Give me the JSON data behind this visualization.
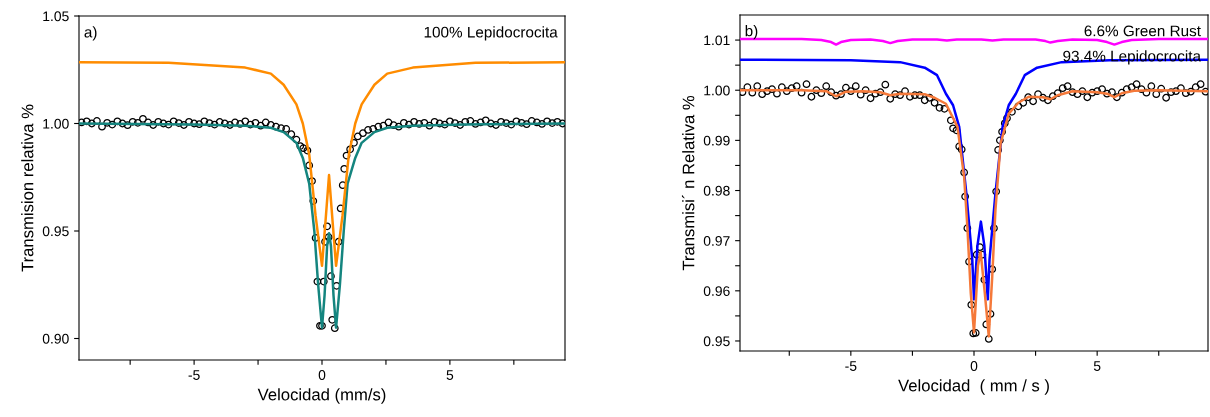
{
  "chart_data": [
    {
      "type": "line",
      "xlabel": "Velocidad (mm/s)",
      "ylabel": "Transmision relativa %",
      "xlim": [
        -9.5,
        9.5
      ],
      "ylim": [
        0.89,
        1.05
      ],
      "xticks": [
        {
          "value": -7.5,
          "label": null
        },
        -5,
        {
          "value": -2.5,
          "label": null
        },
        0,
        {
          "value": 2.5,
          "label": null
        },
        5,
        {
          "value": 7.5,
          "label": null
        }
      ],
      "yticks": [
        {
          "value": 0.9,
          "label": "0.90"
        },
        {
          "value": 0.95,
          "label": "0.95"
        },
        {
          "value": 1.0,
          "label": "1.00"
        },
        {
          "value": 1.05,
          "label": "1.05"
        }
      ],
      "annotations": [
        "a)",
        "100% Lepidocrocita"
      ],
      "series": [
        {
          "type": "scatter",
          "marker": "circle",
          "color": "#000000",
          "x": [
            -9.4,
            -9.2,
            -9.0,
            -8.8,
            -8.6,
            -8.4,
            -8.2,
            -8.0,
            -7.8,
            -7.6,
            -7.4,
            -7.2,
            -7.0,
            -6.8,
            -6.6,
            -6.4,
            -6.2,
            -6.0,
            -5.8,
            -5.6,
            -5.4,
            -5.2,
            -5.0,
            -4.8,
            -4.6,
            -4.4,
            -4.2,
            -4.0,
            -3.8,
            -3.6,
            -3.4,
            -3.2,
            -3.0,
            -2.8,
            -2.6,
            -2.4,
            -2.2,
            -2.0,
            -1.8,
            -1.6,
            -1.4,
            -1.2,
            -1.0,
            -0.85,
            -0.73,
            -0.57,
            -0.5,
            -0.39,
            -0.34,
            -0.25,
            -0.18,
            -0.08,
            0.0,
            0.07,
            0.12,
            0.2,
            0.26,
            0.35,
            0.4,
            0.5,
            0.57,
            0.65,
            0.73,
            0.81,
            0.87,
            0.96,
            1.1,
            1.25,
            1.4,
            1.6,
            1.8,
            2.0,
            2.2,
            2.4,
            2.6,
            2.8,
            3.0,
            3.2,
            3.4,
            3.6,
            3.8,
            4.0,
            4.2,
            4.4,
            4.6,
            4.8,
            5.0,
            5.2,
            5.4,
            5.6,
            5.8,
            6.0,
            6.2,
            6.4,
            6.6,
            6.8,
            7.0,
            7.2,
            7.4,
            7.6,
            7.8,
            8.0,
            8.2,
            8.4,
            8.6,
            8.8,
            9.0,
            9.2,
            9.4
          ],
          "values": [
            1.0005,
            1.001,
            1.0,
            1.0012,
            0.9985,
            1.0003,
            0.9995,
            1.001,
            1.0,
            0.9992,
            1.0008,
            1.0003,
            1.0022,
            1.0005,
            0.9993,
            1.0008,
            1.0,
            0.9995,
            1.001,
            1.0002,
            0.9993,
            1.0008,
            1.0,
            0.9997,
            1.001,
            1.0002,
            0.9995,
            1.0007,
            1.0,
            0.9993,
            1.0005,
            0.9998,
            1.001,
            0.9995,
            1.0003,
            0.999,
            1.0005,
            0.9993,
            0.9985,
            0.9978,
            0.9975,
            0.995,
            0.9925,
            0.9895,
            0.9885,
            0.9874,
            0.9805,
            0.9732,
            0.9639,
            0.9468,
            0.9265,
            0.9059,
            0.9059,
            0.9265,
            0.945,
            0.9522,
            0.9471,
            0.929,
            0.9087,
            0.9048,
            0.9245,
            0.945,
            0.9605,
            0.9713,
            0.9789,
            0.9851,
            0.988,
            0.991,
            0.994,
            0.9955,
            0.997,
            0.9975,
            0.9985,
            0.999,
            1.0005,
            0.9992,
            0.9985,
            1.0003,
            0.9995,
            1.0008,
            0.9998,
            1.0003,
            0.999,
            1.0008,
            1.0,
            0.9995,
            1.001,
            1.0002,
            0.9993,
            1.0008,
            1.0012,
            0.9998,
            1.0005,
            1.0015,
            1.0,
            0.9993,
            1.0008,
            1.0002,
            0.9995,
            1.001,
            1.0003,
            0.9997,
            1.0012,
            1.0005,
            0.9998,
            1.001,
            1.0002,
            1.0008,
            1.0
          ]
        },
        {
          "color": "#14857f",
          "x": [
            -9.5,
            -5,
            -3,
            -2,
            -1.5,
            -1,
            -0.75,
            -0.5,
            -0.3,
            -0.15,
            0.0,
            0.1,
            0.2,
            0.275,
            0.35,
            0.45,
            0.55,
            0.7,
            0.85,
            1.0,
            1.3,
            1.55,
            2.05,
            2.55,
            3.55,
            5.55,
            9.5
          ],
          "values": [
            1.0,
            0.9995,
            0.999,
            0.998,
            0.996,
            0.991,
            0.984,
            0.972,
            0.95,
            0.925,
            0.905,
            0.92,
            0.943,
            0.949,
            0.943,
            0.92,
            0.905,
            0.925,
            0.95,
            0.972,
            0.984,
            0.991,
            0.996,
            0.998,
            0.999,
            0.9995,
            1.0
          ]
        },
        {
          "color": "#ff8c00",
          "x": [
            -9.5,
            -6,
            -3,
            -2,
            -1.5,
            -1,
            -0.75,
            -0.5,
            -0.25,
            0.0,
            0.14,
            0.275,
            0.41,
            0.55,
            0.8,
            1.05,
            1.3,
            1.55,
            2.05,
            2.55,
            3.55,
            6,
            9.5
          ],
          "values": [
            1.0285,
            1.0282,
            1.026,
            1.0232,
            1.018,
            1.0089,
            1.0,
            0.9856,
            0.957,
            0.9338,
            0.955,
            0.976,
            0.955,
            0.9338,
            0.957,
            0.9856,
            1.0,
            1.0089,
            1.018,
            1.0232,
            1.026,
            1.0282,
            1.0285
          ]
        }
      ]
    },
    {
      "type": "line",
      "xlabel": "Velocidad  ( mm / s )",
      "ylabel": "Transmisi´ n Relativa %",
      "xlim": [
        -9.5,
        9.5
      ],
      "ylim": [
        0.948,
        1.015
      ],
      "xticks": [
        {
          "value": -7.5,
          "label": null
        },
        -5,
        {
          "value": -2.5,
          "label": null
        },
        0,
        {
          "value": 2.5,
          "label": null
        },
        5,
        {
          "value": 7.5,
          "label": null
        }
      ],
      "yticks": [
        {
          "value": 0.95,
          "label": "0.95"
        },
        {
          "value": 0.955,
          "label": null
        },
        {
          "value": 0.96,
          "label": "0.96"
        },
        {
          "value": 0.965,
          "label": null
        },
        {
          "value": 0.97,
          "label": "0.97"
        },
        {
          "value": 0.975,
          "label": null
        },
        {
          "value": 0.98,
          "label": "0.98"
        },
        {
          "value": 0.985,
          "label": null
        },
        {
          "value": 0.99,
          "label": "0.99"
        },
        {
          "value": 0.995,
          "label": null
        },
        {
          "value": 1.0,
          "label": "1.00"
        },
        {
          "value": 1.005,
          "label": null
        },
        {
          "value": 1.01,
          "label": "1.01"
        }
      ],
      "annotations": [
        "b)",
        "6.6% Green Rust",
        "93.4% Lepidocrocita"
      ],
      "series": [
        {
          "type": "scatter",
          "marker": "circle",
          "color": "#000000",
          "x": [
            -9.4,
            -9.2,
            -9.0,
            -8.8,
            -8.6,
            -8.4,
            -8.2,
            -8.0,
            -7.8,
            -7.6,
            -7.4,
            -7.2,
            -7.0,
            -6.8,
            -6.6,
            -6.4,
            -6.2,
            -6.0,
            -5.8,
            -5.6,
            -5.4,
            -5.2,
            -5.0,
            -4.8,
            -4.6,
            -4.4,
            -4.2,
            -4.0,
            -3.8,
            -3.6,
            -3.4,
            -3.2,
            -3.0,
            -2.8,
            -2.6,
            -2.4,
            -2.2,
            -2.0,
            -1.8,
            -1.6,
            -1.4,
            -1.2,
            -0.94,
            -0.85,
            -0.71,
            -0.6,
            -0.5,
            -0.4,
            -0.36,
            -0.27,
            -0.2,
            -0.11,
            -0.03,
            0.07,
            0.11,
            0.24,
            0.34,
            0.42,
            0.5,
            0.6,
            0.67,
            0.74,
            0.81,
            0.9,
            0.98,
            1.05,
            1.14,
            1.25,
            1.34,
            1.54,
            1.8,
            2.0,
            2.2,
            2.4,
            2.6,
            2.8,
            3.0,
            3.2,
            3.4,
            3.6,
            3.8,
            4.0,
            4.2,
            4.4,
            4.6,
            4.8,
            5.0,
            5.2,
            5.4,
            5.6,
            5.8,
            6.0,
            6.2,
            6.4,
            6.6,
            6.8,
            7.0,
            7.2,
            7.4,
            7.6,
            7.8,
            8.0,
            8.2,
            8.4,
            8.6,
            8.8,
            9.0,
            9.2,
            9.4
          ],
          "values": [
            0.9996,
            1.0006,
            0.9995,
            1.0008,
            0.9992,
            0.9998,
            1.0002,
            0.9993,
            1.0006,
            0.9998,
            1.0004,
            1.0008,
            0.9995,
            1.0012,
            0.9987,
            1.0,
            0.9994,
            1.0008,
            0.9996,
            0.9989,
            0.9992,
            1.0005,
            0.9998,
            1.0008,
            0.9991,
            1.0,
            0.9984,
            0.9993,
            0.9996,
            1.0011,
            0.9983,
            0.9992,
            0.999,
            0.9998,
            0.9987,
            0.999,
            0.999,
            0.998,
            0.9985,
            0.9975,
            0.9965,
            0.9963,
            0.994,
            0.9924,
            0.992,
            0.9888,
            0.9882,
            0.9836,
            0.9788,
            0.9725,
            0.9658,
            0.9572,
            0.9515,
            0.9516,
            0.9672,
            0.9687,
            0.9672,
            0.9622,
            0.9533,
            0.9504,
            0.9554,
            0.9643,
            0.9725,
            0.9798,
            0.9881,
            0.99,
            0.9917,
            0.9934,
            0.9944,
            0.9957,
            0.9968,
            0.9975,
            0.9986,
            0.9978,
            0.9992,
            0.9985,
            0.998,
            0.9988,
            0.9994,
            1.0004,
            1.0008,
            0.9996,
            0.9992,
            0.9998,
            0.9986,
            0.9995,
            0.9998,
            1.0002,
            0.9993,
            0.9996,
            0.9986,
            0.9995,
            1.0002,
            1.0006,
            1.0012,
            1.0002,
            0.9995,
            1.0008,
            0.9992,
            1.0003,
            0.9985,
            0.9996,
            0.9998,
            1.0004,
            0.9994,
            0.9997,
            1.0006,
            1.0012,
            0.9997
          ]
        },
        {
          "color": "#ff00ff",
          "x": [
            -9.5,
            -7,
            -6.2,
            -5.8,
            -5.6,
            -5.4,
            -5.0,
            -4.2,
            -3.7,
            -3.4,
            -3.1,
            -2.5,
            -1.5,
            -1.1,
            -0.7,
            0.3,
            0.75,
            1.2,
            2.5,
            2.9,
            3.1,
            3.4,
            4.0,
            5.0,
            5.4,
            5.7,
            6.0,
            6.4,
            7.5,
            9.5
          ],
          "values": [
            1.0102,
            1.0102,
            1.01,
            1.0096,
            1.0091,
            1.0096,
            1.01,
            1.0101,
            1.0098,
            1.0094,
            1.0098,
            1.0101,
            1.0101,
            1.0099,
            1.0101,
            1.0101,
            1.0099,
            1.0101,
            1.0101,
            1.0098,
            1.0095,
            1.0098,
            1.0101,
            1.01,
            1.0096,
            1.0091,
            1.0096,
            1.01,
            1.0102,
            1.0102
          ]
        },
        {
          "color": "#0000ff",
          "x": [
            -9.5,
            -5,
            -3,
            -2,
            -1.5,
            -1.14,
            -0.85,
            -0.6,
            -0.31,
            -0.07,
            0.0,
            0.14,
            0.28,
            0.42,
            0.56,
            0.63,
            0.87,
            1.16,
            1.41,
            1.7,
            2.06,
            2.56,
            3.56,
            5.5,
            9.5
          ],
          "values": [
            1.0061,
            1.006,
            1.0056,
            1.0045,
            1.003,
            0.9993,
            0.997,
            0.9927,
            0.9794,
            0.9662,
            0.9583,
            0.969,
            0.9738,
            0.969,
            0.9583,
            0.9662,
            0.9794,
            0.9927,
            0.997,
            0.9993,
            1.003,
            1.0045,
            1.0056,
            1.006,
            1.0061
          ]
        },
        {
          "color": "#f5793a",
          "x": [
            -9.5,
            -7,
            -6.0,
            -5.6,
            -5.2,
            -4.5,
            -3.8,
            -3.4,
            -3.0,
            -2.0,
            -1.6,
            -1.14,
            -0.67,
            -0.4,
            -0.27,
            -0.13,
            0.0,
            0.16,
            0.27,
            0.44,
            0.6,
            0.74,
            0.87,
            1.08,
            1.41,
            1.8,
            2.22,
            2.8,
            3.1,
            3.4,
            4.0,
            5.0,
            5.4,
            5.7,
            6.0,
            6.5,
            7.5,
            9.5
          ],
          "values": [
            1.0,
            1.0,
            0.9998,
            0.9988,
            0.9997,
            0.9998,
            0.9996,
            0.999,
            0.9993,
            0.9992,
            0.9985,
            0.9973,
            0.9927,
            0.9827,
            0.9728,
            0.9595,
            0.9517,
            0.965,
            0.9677,
            0.9595,
            0.9509,
            0.9628,
            0.9761,
            0.9894,
            0.9953,
            0.9975,
            0.9987,
            0.9986,
            0.9982,
            0.999,
            0.9998,
            0.9996,
            0.9993,
            0.9986,
            0.9994,
            0.9999,
            1.0,
            0.9998
          ]
        }
      ]
    }
  ]
}
